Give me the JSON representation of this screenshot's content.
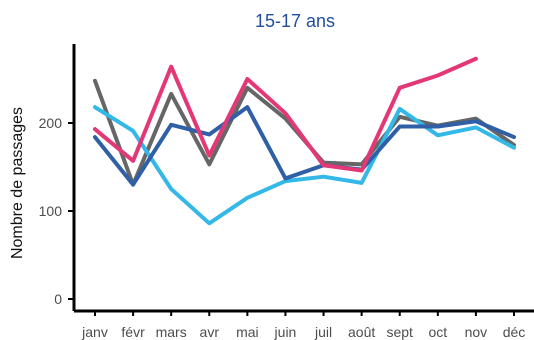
{
  "chart_data": {
    "type": "line",
    "title": "15-17 ans",
    "xlabel": "",
    "ylabel": "Nombre de passages",
    "categories": [
      "janv",
      "févr",
      "mars",
      "avr",
      "mai",
      "juin",
      "juil",
      "août",
      "sept",
      "oct",
      "nov",
      "déc"
    ],
    "ylim": [
      0,
      275
    ],
    "yticks": [
      0,
      100,
      200
    ],
    "grid": false,
    "legend": "none",
    "series": [
      {
        "color": "#666666",
        "values": [
          248,
          130,
          233,
          153,
          240,
          205,
          155,
          153,
          207,
          197,
          205,
          175
        ]
      },
      {
        "color": "#33b8e8",
        "values": [
          218,
          191,
          125,
          86,
          115,
          134,
          139,
          132,
          216,
          186,
          195,
          172
        ]
      },
      {
        "color": "#2f5fa6",
        "values": [
          184,
          130,
          198,
          187,
          218,
          137,
          152,
          147,
          196,
          196,
          202,
          184
        ]
      },
      {
        "color": "#e43775",
        "values": [
          193,
          157,
          264,
          163,
          250,
          211,
          152,
          146,
          240,
          254,
          273,
          null
        ]
      }
    ]
  }
}
